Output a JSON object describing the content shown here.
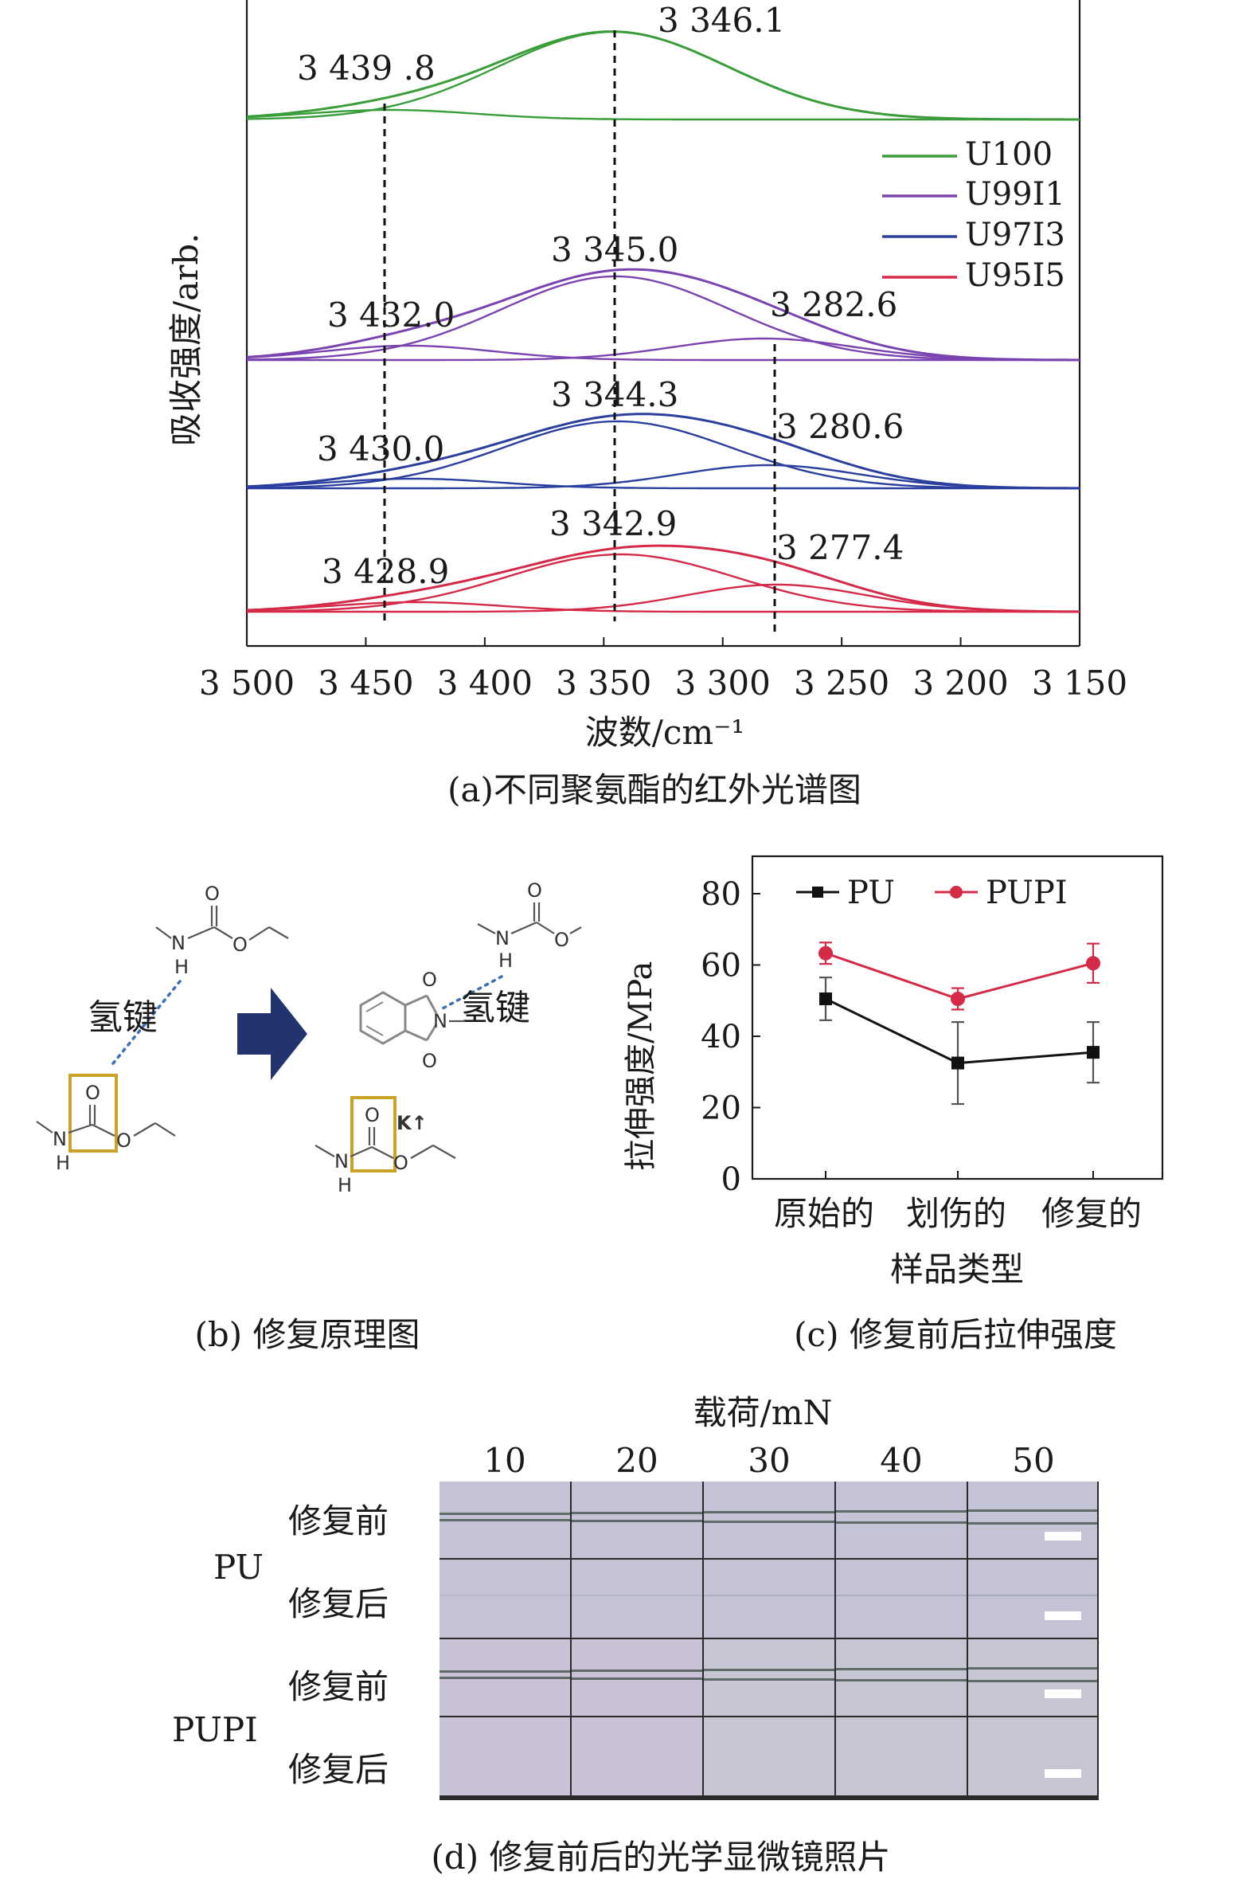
{
  "panel_a": {
    "caption": "(a)不同聚氨酯的红外光谱图",
    "ylabel": "吸收强度/arb.",
    "xlabel": "波数/cm⁻¹",
    "xticks": [
      "3 500",
      "3 450",
      "3 400",
      "3 350",
      "3 300",
      "3 250",
      "3 200",
      "3 150"
    ],
    "legend": [
      {
        "name": "U100",
        "color": "#3a9d3a"
      },
      {
        "name": "U99I1",
        "color": "#7a44b0"
      },
      {
        "name": "U97I3",
        "color": "#2b3f9e"
      },
      {
        "name": "U95I5",
        "color": "#d42a48"
      }
    ],
    "peak_labels": {
      "u100": [
        "3 439 .8",
        "3 346.1"
      ],
      "u99i1": [
        "3 432.0",
        "3 345.0",
        "3 282.6"
      ],
      "u97i3": [
        "3 430.0",
        "3 344.3",
        "3 280.6"
      ],
      "u95i5": [
        "3 428.9",
        "3 342.9",
        "3 277.4"
      ]
    }
  },
  "panel_b": {
    "caption": "(b) 修复原理图",
    "hbond_label_1": "氢键",
    "hbond_label_2": "氢键",
    "atom_o": "O",
    "atom_n": "N",
    "atom_h": "H",
    "k_label": "K↑",
    "box_color": "#c9a227",
    "arrow_color": "#23336e"
  },
  "panel_c": {
    "caption": "(c) 修复前后拉伸强度",
    "ylabel": "拉伸强度/MPa",
    "xlabel": "样品类型",
    "legend": [
      "PU",
      "PUPI"
    ]
  },
  "panel_d": {
    "caption": "(d) 修复前后的光学显微镜照片",
    "load_title": "载荷/mN",
    "loads": [
      "10",
      "20",
      "30",
      "40",
      "50"
    ],
    "rows": [
      {
        "group": "PU",
        "state": "修复前"
      },
      {
        "group": "",
        "state": "修复后"
      },
      {
        "group": "PUPI",
        "state": "修复前"
      },
      {
        "group": "",
        "state": "修复后"
      }
    ],
    "group_labels": [
      "PU",
      "PUPI"
    ]
  },
  "chart_data": [
    {
      "type": "line",
      "title": "(a)不同聚氨酯的红外光谱图",
      "xlabel": "波数/cm⁻¹",
      "ylabel": "吸收强度/arb.",
      "xlim": [
        3500,
        3150
      ],
      "x_reversed": true,
      "legend_position": "right",
      "series": [
        {
          "name": "U100",
          "peaks_cm-1": [
            3439.8,
            3346.1
          ]
        },
        {
          "name": "U99I1",
          "peaks_cm-1": [
            3432.0,
            3345.0,
            3282.6
          ]
        },
        {
          "name": "U97I3",
          "peaks_cm-1": [
            3430.0,
            3344.3,
            3280.6
          ]
        },
        {
          "name": "U95I5",
          "peaks_cm-1": [
            3428.9,
            3342.9,
            3277.4
          ]
        }
      ]
    },
    {
      "type": "line",
      "title": "(c) 修复前后拉伸强度",
      "xlabel": "样品类型",
      "ylabel": "拉伸强度/MPa",
      "categories": [
        "原始的",
        "划伤的",
        "修复的"
      ],
      "ylim": [
        0,
        80
      ],
      "yticks": [
        "0",
        "20",
        "40",
        "60",
        "80"
      ],
      "legend_position": "top",
      "series": [
        {
          "name": "PU",
          "color": "#111111",
          "values": [
            50.5,
            32.5,
            35.5
          ],
          "errors": [
            6,
            11.5,
            8.5
          ]
        },
        {
          "name": "PUPI",
          "color": "#d42a48",
          "values": [
            63.3,
            50.5,
            60.5
          ],
          "errors": [
            3,
            3,
            5.5
          ]
        }
      ]
    }
  ]
}
